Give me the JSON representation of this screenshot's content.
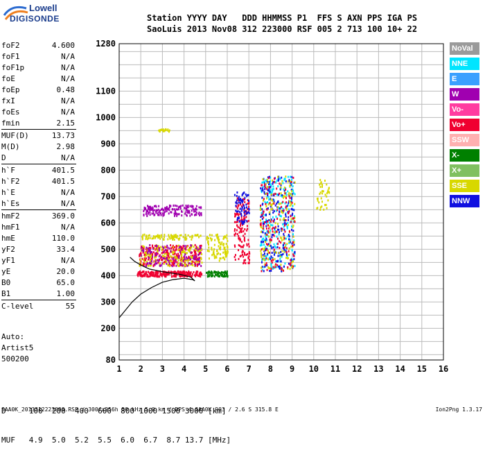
{
  "logo": {
    "line1": "Lowell",
    "line2": "DIGISONDE"
  },
  "header": {
    "line1": "Station YYYY DAY   DDD HHMMSS P1  FFS S AXN PPS IGA PS",
    "line2": "SaoLuis 2013 Nov08 312 223000 RSF 005 2 713 100 10+ 22"
  },
  "params": [
    {
      "name": "foF2",
      "value": "4.600"
    },
    {
      "name": "foF1",
      "value": "N/A"
    },
    {
      "name": "foF1p",
      "value": "N/A"
    },
    {
      "name": "foE",
      "value": "N/A"
    },
    {
      "name": "foEp",
      "value": "0.48"
    },
    {
      "name": "fxI",
      "value": "N/A"
    },
    {
      "name": "foEs",
      "value": "N/A"
    },
    {
      "name": "fmin",
      "value": "2.15"
    },
    {
      "name": "MUF(D)",
      "value": "13.73",
      "sep": true
    },
    {
      "name": "M(D)",
      "value": "2.98"
    },
    {
      "name": "D",
      "value": "N/A"
    },
    {
      "name": "h`F",
      "value": "401.5",
      "sep": true
    },
    {
      "name": "h`F2",
      "value": "401.5"
    },
    {
      "name": "h`E",
      "value": "N/A"
    },
    {
      "name": "h`Es",
      "value": "N/A"
    },
    {
      "name": "hmF2",
      "value": "369.0",
      "sep": true
    },
    {
      "name": "hmF1",
      "value": "N/A"
    },
    {
      "name": "hmE",
      "value": "110.0"
    },
    {
      "name": "yF2",
      "value": "33.4"
    },
    {
      "name": "yF1",
      "value": "N/A"
    },
    {
      "name": "yE",
      "value": "20.0"
    },
    {
      "name": "B0",
      "value": "65.0"
    },
    {
      "name": "B1",
      "value": "1.00"
    },
    {
      "name": "C-level",
      "value": "55",
      "sep": true
    }
  ],
  "auto": {
    "line1": "Auto:",
    "line2": "Artist5",
    "line3": "500200"
  },
  "legend": [
    {
      "label": "NoVal",
      "color": "#9a9a9a"
    },
    {
      "label": "NNE",
      "color": "#00e5ff"
    },
    {
      "label": "E",
      "color": "#3aa0ff"
    },
    {
      "label": "W",
      "color": "#a000b0"
    },
    {
      "label": "Vo-",
      "color": "#ff3ca0"
    },
    {
      "label": "Vo+",
      "color": "#f00030"
    },
    {
      "label": "SSW",
      "color": "#ffb0b0"
    },
    {
      "label": "X-",
      "color": "#008000"
    },
    {
      "label": "X+",
      "color": "#80c060"
    },
    {
      "label": "SSE",
      "color": "#d8d800"
    },
    {
      "label": "NNW",
      "color": "#1010e0"
    }
  ],
  "footer": {
    "line1": "D     100  200  400  600  800 1000 1500 3000 [km]",
    "line2": "MUF   4.9  5.0  5.2  5.5  6.0  6.7  8.7 13.7 [MHz]"
  },
  "bottom_line": "SAA0K_2013312223000.RSF / 300fx256h 50 kHz 5.0 km / DPS-4 SAA0K 903 / 2.6 S 315.8 E",
  "version": "Ion2Png 1.3.17",
  "chart_data": {
    "type": "scatter",
    "xlim": [
      1,
      16
    ],
    "ylim": [
      80,
      1280
    ],
    "x_ticks": [
      1,
      2,
      3,
      4,
      5,
      6,
      7,
      8,
      9,
      10,
      11,
      12,
      13,
      14,
      15,
      16
    ],
    "y_ticks": [
      80,
      200,
      300,
      400,
      500,
      600,
      700,
      800,
      900,
      1000,
      1100,
      1280
    ],
    "grid": true,
    "clusters": [
      {
        "x": [
          1.8,
          4.8
        ],
        "y": [
          400,
          420
        ],
        "color": "#f00030",
        "n": 260
      },
      {
        "x": [
          1.9,
          4.8
        ],
        "y": [
          440,
          520
        ],
        "color": "#f00030",
        "n": 320
      },
      {
        "x": [
          1.9,
          4.8
        ],
        "y": [
          440,
          520
        ],
        "color": "#d8d800",
        "n": 160
      },
      {
        "x": [
          1.9,
          4.8
        ],
        "y": [
          440,
          520
        ],
        "color": "#a000b0",
        "n": 120
      },
      {
        "x": [
          2.0,
          4.8
        ],
        "y": [
          540,
          560
        ],
        "color": "#d8d800",
        "n": 90
      },
      {
        "x": [
          2.1,
          4.8
        ],
        "y": [
          630,
          670
        ],
        "color": "#a000b0",
        "n": 170
      },
      {
        "x": [
          5.0,
          6.0
        ],
        "y": [
          400,
          420
        ],
        "color": "#008000",
        "n": 70
      },
      {
        "x": [
          5.0,
          6.0
        ],
        "y": [
          460,
          560
        ],
        "color": "#d8d800",
        "n": 100
      },
      {
        "x": [
          6.3,
          7.0
        ],
        "y": [
          450,
          700
        ],
        "color": "#f00030",
        "n": 150
      },
      {
        "x": [
          6.3,
          7.0
        ],
        "y": [
          600,
          720
        ],
        "color": "#1010e0",
        "n": 70
      },
      {
        "x": [
          7.5,
          9.1
        ],
        "y": [
          420,
          780
        ],
        "color": "#00e5ff",
        "n": 220
      },
      {
        "x": [
          7.5,
          9.1
        ],
        "y": [
          420,
          780
        ],
        "color": "#1010e0",
        "n": 220
      },
      {
        "x": [
          7.5,
          9.1
        ],
        "y": [
          420,
          780
        ],
        "color": "#d8d800",
        "n": 150
      },
      {
        "x": [
          7.5,
          9.1
        ],
        "y": [
          420,
          780
        ],
        "color": "#f00030",
        "n": 120
      },
      {
        "x": [
          10.1,
          10.7
        ],
        "y": [
          650,
          770
        ],
        "color": "#d8d800",
        "n": 40
      },
      {
        "x": [
          2.8,
          3.3
        ],
        "y": [
          950,
          960
        ],
        "color": "#d8d800",
        "n": 20
      }
    ],
    "trace": {
      "x": [
        1.0,
        1.3,
        1.6,
        2.0,
        2.5,
        3.0,
        3.5,
        4.0,
        4.4,
        4.5,
        4.3,
        3.8,
        3.0,
        2.4,
        2.0,
        1.7,
        1.5
      ],
      "y": [
        240,
        270,
        300,
        330,
        355,
        375,
        385,
        390,
        385,
        380,
        395,
        405,
        415,
        425,
        440,
        455,
        470
      ]
    }
  }
}
